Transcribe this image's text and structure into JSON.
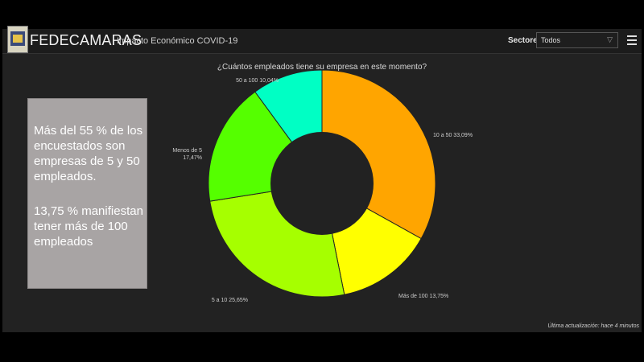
{
  "header": {
    "title": "FEDECAMARAS",
    "subtitle": "Impacto Económico COVID-19",
    "filter_label": "Sectores",
    "filter_value": "Todos"
  },
  "callout": {
    "line1": "Más del 55 % de los encuestados son empresas de 5 y 50 empleados.",
    "line2": "13,75 % manifiestan tener más de 100 empleados"
  },
  "footer": {
    "updated": "Última actualización: hace 4 minutos"
  },
  "chart_data": {
    "type": "pie",
    "title": "¿Cuántos empleados tiene su empresa en este momento?",
    "donut": true,
    "slices": [
      {
        "label": "10 a 50",
        "value": 33.09,
        "display": "10 a 50 33,09%",
        "color": "#ffa500"
      },
      {
        "label": "Más de 100",
        "value": 13.75,
        "display": "Más de 100 13,75%",
        "color": "#ffff00"
      },
      {
        "label": "5 a 10",
        "value": 25.65,
        "display": "5 a 10 25,65%",
        "color": "#a6ff00"
      },
      {
        "label": "Menos de 5",
        "value": 17.47,
        "display_line1": "Menos de 5",
        "display_line2": "17,47%",
        "color": "#55ff00"
      },
      {
        "label": "50 a 100",
        "value": 10.04,
        "display": "50 a 100 10,04%",
        "color": "#00ffc4"
      }
    ]
  }
}
